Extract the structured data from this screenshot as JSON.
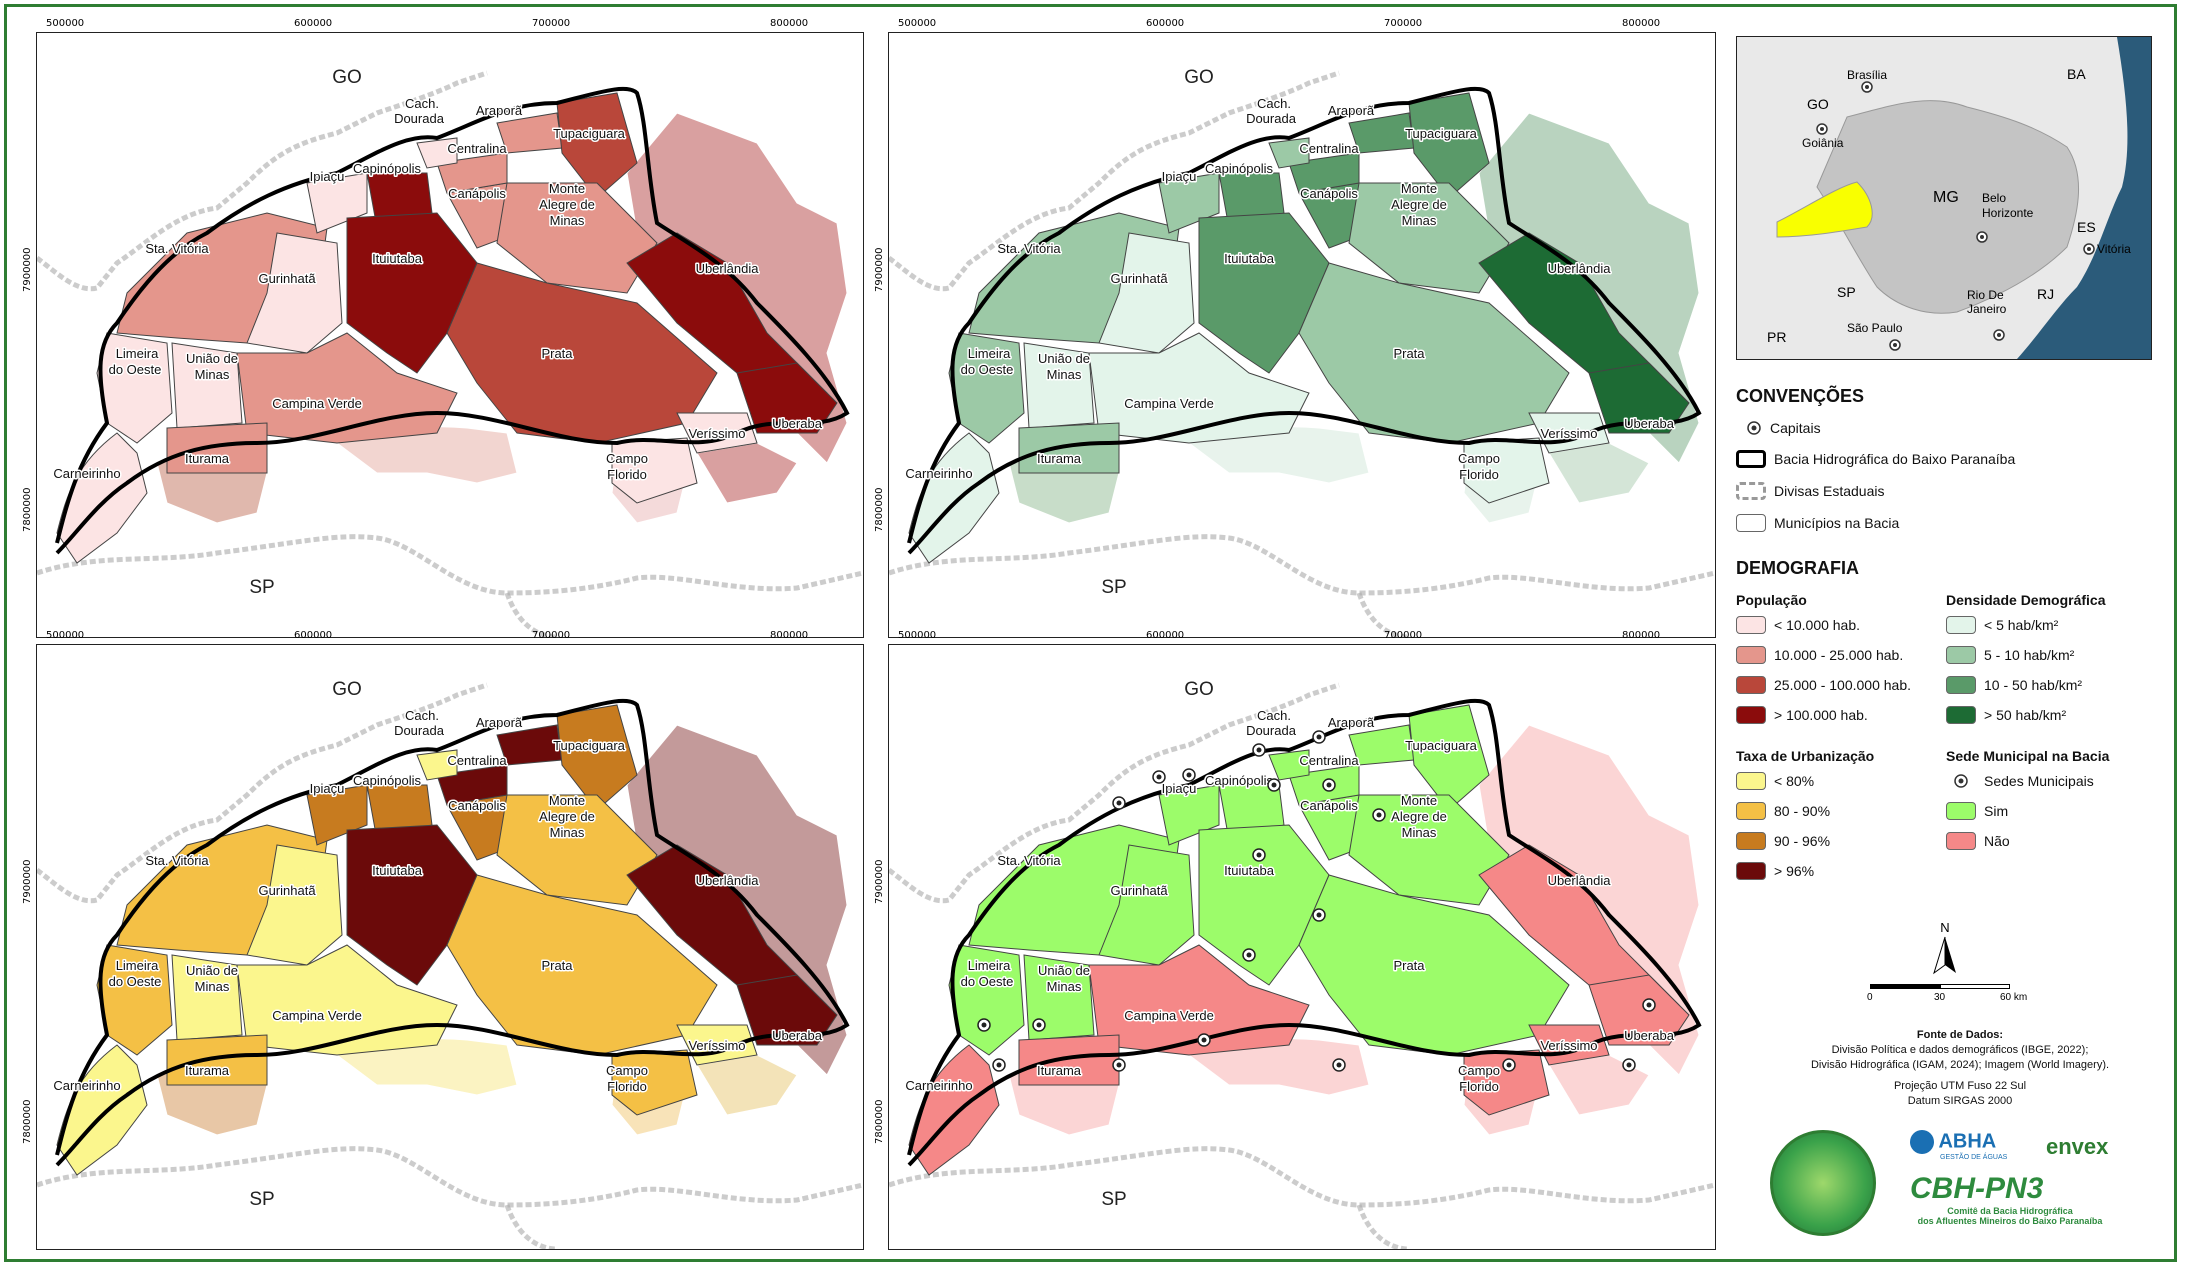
{
  "maps": [
    {
      "id": "populacao",
      "ticks_x": [
        "500000",
        "600000",
        "700000",
        "800000"
      ],
      "ticks_y": [
        "7900000",
        "7800000"
      ]
    },
    {
      "id": "densidade",
      "ticks_x": [
        "500000",
        "600000",
        "700000",
        "800000"
      ],
      "ticks_y": [
        "7900000",
        "7800000"
      ]
    },
    {
      "id": "urbanizacao",
      "ticks_x": [
        "500000",
        "600000",
        "700000",
        "800000"
      ],
      "ticks_y": [
        "7900000",
        "7800000"
      ]
    },
    {
      "id": "sede",
      "ticks_x": [
        "500000",
        "600000",
        "700000",
        "800000"
      ],
      "ticks_y": [
        "7900000",
        "7800000"
      ]
    }
  ],
  "state_labels": {
    "go": "GO",
    "sp": "SP"
  },
  "municipalities": {
    "cach": "Cach.",
    "dourada": "Dourada",
    "arapora": "Araporã",
    "tupaciguara": "Tupaciguara",
    "centralina": "Centralina",
    "ipiacu": "Ipiaçu",
    "capinopolis": "Capinópolis",
    "canapolis": "Canápolis",
    "monte": "Monte",
    "alegre": "Alegre de",
    "minas": "Minas",
    "sta_vitoria": "Sta. Vitória",
    "ituiutaba": "Ituiutaba",
    "uberlandia": "Uberlândia",
    "gurinhata": "Gurinhatã",
    "limeira": "Limeira",
    "do_oeste": "do Oeste",
    "uniao": "União de",
    "uniao2": "Minas",
    "prata": "Prata",
    "campina_verde": "Campina Verde",
    "carneirinho": "Carneirinho",
    "iturama": "Iturama",
    "campo": "Campo",
    "florido": "Florido",
    "verissimo": "Veríssimo",
    "uberaba": "Uberaba",
    "campo_florido": "Campo Florido"
  },
  "inset": {
    "labels": {
      "brasilia": "Brasília",
      "go": "GO",
      "goiania": "Goiânia",
      "ba": "BA",
      "mg": "MG",
      "belo": "Belo",
      "horizonte": "Horizonte",
      "es": "ES",
      "vitoria": "Vitória",
      "sp": "SP",
      "rj": "RJ",
      "rio": "Rio De",
      "janeiro": "Janeiro",
      "sao_paulo": "São Paulo",
      "pr": "PR"
    }
  },
  "legend": {
    "convencoes_title": "CONVENÇÕES",
    "capitais": "Capitais",
    "bacia": "Bacia Hidrográfica do Baixo Paranaíba",
    "divisas": "Divisas Estaduais",
    "municipios": "Municípios na Bacia",
    "demografia_title": "DEMOGRAFIA",
    "populacao_title": "População",
    "populacao": [
      {
        "label": "< 10.000 hab.",
        "color": "#fce4e4"
      },
      {
        "label": "10.000 - 25.000 hab.",
        "color": "#e4968c"
      },
      {
        "label": "25.000 - 100.000 hab.",
        "color": "#b9473a"
      },
      {
        "label": "> 100.000 hab.",
        "color": "#8b0c0c"
      }
    ],
    "densidade_title": "Densidade Demográfica",
    "densidade": [
      {
        "label": "< 5 hab/km²",
        "color": "#e3f4ea"
      },
      {
        "label": "5 - 10 hab/km²",
        "color": "#9cc9a6"
      },
      {
        "label": "10 - 50 hab/km²",
        "color": "#5a9a69"
      },
      {
        "label": "> 50 hab/km²",
        "color": "#1d6b34"
      }
    ],
    "urbanizacao_title": "Taxa de Urbanização",
    "urbanizacao": [
      {
        "label": "< 80%",
        "color": "#fbf68d"
      },
      {
        "label": "80 - 90%",
        "color": "#f4c045"
      },
      {
        "label": "90 - 96%",
        "color": "#c77b1f"
      },
      {
        "label": "> 96%",
        "color": "#6b0a0a"
      }
    ],
    "sede_title": "Sede Municipal na Bacia",
    "sede": [
      {
        "label": "Sedes Municipais",
        "color": "none"
      },
      {
        "label": "Sim",
        "color": "#9cfc6a"
      },
      {
        "label": "Não",
        "color": "#f58888"
      }
    ],
    "north": "N",
    "scale": [
      "0",
      "30",
      "60 km"
    ]
  },
  "source": {
    "title": "Fonte de Dados:",
    "line1": "Divisão Política e dados demográficos (IBGE, 2022);",
    "line2": "Divisão Hidrográfica (IGAM, 2024); Imagem (World Imagery).",
    "line3": "Projeção UTM Fuso 22 Sul",
    "line4": "Datum SIRGAS 2000"
  },
  "logos": {
    "abha": "ABHA",
    "abha_sub": "GESTÃO DE ÁGUAS",
    "envex": "envex",
    "cbh": "CBH-PN3",
    "cbh_sub1": "Comitê da Bacia Hidrográfica",
    "cbh_sub2": "dos Afluentes Mineiros do Baixo Paranaíba"
  }
}
